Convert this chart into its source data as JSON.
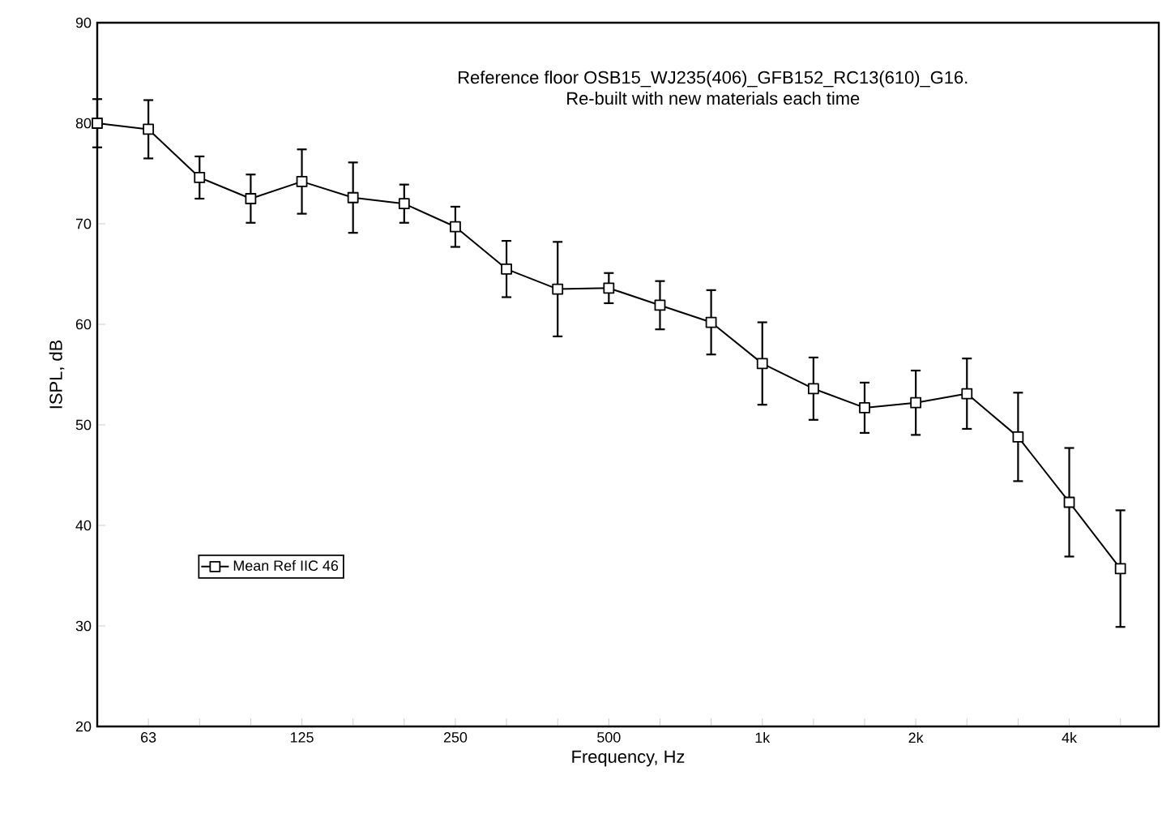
{
  "chart_data": {
    "type": "line",
    "title": "Reference floor OSB15_WJ235(406)_GFB152_RC13(610)_G16.",
    "subtitle": "Re-built with new materials each time",
    "xlabel": "Frequency, Hz",
    "ylabel": "ISPL, dB",
    "categories": [
      null,
      "63",
      null,
      null,
      "125",
      null,
      null,
      "250",
      null,
      null,
      "500",
      null,
      null,
      "1k",
      null,
      null,
      "2k",
      null,
      null,
      "4k",
      null
    ],
    "series": [
      {
        "name": "Mean Ref IIC 46",
        "color": "#000000",
        "values": [
          80.0,
          79.4,
          74.6,
          72.5,
          74.2,
          72.6,
          72.0,
          69.7,
          65.5,
          63.5,
          63.6,
          61.9,
          60.2,
          56.1,
          53.6,
          51.7,
          52.2,
          53.1,
          48.8,
          42.3,
          35.7
        ],
        "errors": [
          2.4,
          2.9,
          2.1,
          2.4,
          3.2,
          3.5,
          1.9,
          2.0,
          2.8,
          4.7,
          1.5,
          2.4,
          3.2,
          4.1,
          3.1,
          2.5,
          3.2,
          3.5,
          4.4,
          5.4,
          5.8
        ]
      }
    ],
    "ylim": [
      20,
      90
    ],
    "yticks": [
      20,
      30,
      40,
      50,
      60,
      70,
      80,
      90
    ],
    "grid": false,
    "legend": "left",
    "marker": "square",
    "line_style": "solid"
  }
}
